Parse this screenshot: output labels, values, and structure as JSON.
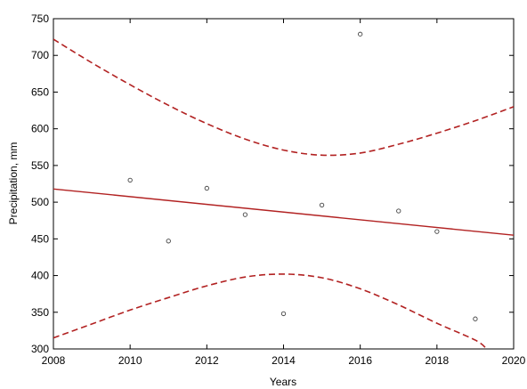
{
  "chart_data": {
    "type": "scatter",
    "title": "",
    "xlabel": "Years",
    "ylabel": "Precipitation, mm",
    "xlim": [
      2008,
      2020
    ],
    "ylim": [
      300,
      750
    ],
    "xticks": [
      2008,
      2010,
      2012,
      2014,
      2016,
      2018,
      2020
    ],
    "yticks": [
      300,
      350,
      400,
      450,
      500,
      550,
      600,
      650,
      700,
      750
    ],
    "grid": false,
    "legend": "none",
    "colors": {
      "fit": "#b22222",
      "points": "#444444",
      "axis": "#000000"
    },
    "points": [
      {
        "x": 2010,
        "y": 530
      },
      {
        "x": 2011,
        "y": 447
      },
      {
        "x": 2012,
        "y": 519
      },
      {
        "x": 2013,
        "y": 483
      },
      {
        "x": 2014,
        "y": 348
      },
      {
        "x": 2015,
        "y": 496
      },
      {
        "x": 2016,
        "y": 729
      },
      {
        "x": 2017,
        "y": 488
      },
      {
        "x": 2018,
        "y": 460
      },
      {
        "x": 2019,
        "y": 341
      }
    ],
    "fit_line": [
      {
        "x": 2008,
        "y": 518
      },
      {
        "x": 2020,
        "y": 455
      }
    ],
    "upper_band": [
      {
        "x": 2008,
        "y": 722
      },
      {
        "x": 2009,
        "y": 690
      },
      {
        "x": 2010,
        "y": 660
      },
      {
        "x": 2011,
        "y": 632
      },
      {
        "x": 2012,
        "y": 607
      },
      {
        "x": 2013,
        "y": 586
      },
      {
        "x": 2014,
        "y": 571
      },
      {
        "x": 2015,
        "y": 564
      },
      {
        "x": 2016,
        "y": 567
      },
      {
        "x": 2017,
        "y": 579
      },
      {
        "x": 2018,
        "y": 594
      },
      {
        "x": 2019,
        "y": 611
      },
      {
        "x": 2020,
        "y": 630
      }
    ],
    "lower_band": [
      {
        "x": 2008,
        "y": 315
      },
      {
        "x": 2009,
        "y": 334
      },
      {
        "x": 2010,
        "y": 353
      },
      {
        "x": 2011,
        "y": 370
      },
      {
        "x": 2012,
        "y": 386
      },
      {
        "x": 2013,
        "y": 398
      },
      {
        "x": 2014,
        "y": 402
      },
      {
        "x": 2015,
        "y": 397
      },
      {
        "x": 2016,
        "y": 382
      },
      {
        "x": 2017,
        "y": 360
      },
      {
        "x": 2018,
        "y": 335
      },
      {
        "x": 2019,
        "y": 312
      },
      {
        "x": 2019.3,
        "y": 300
      }
    ]
  }
}
